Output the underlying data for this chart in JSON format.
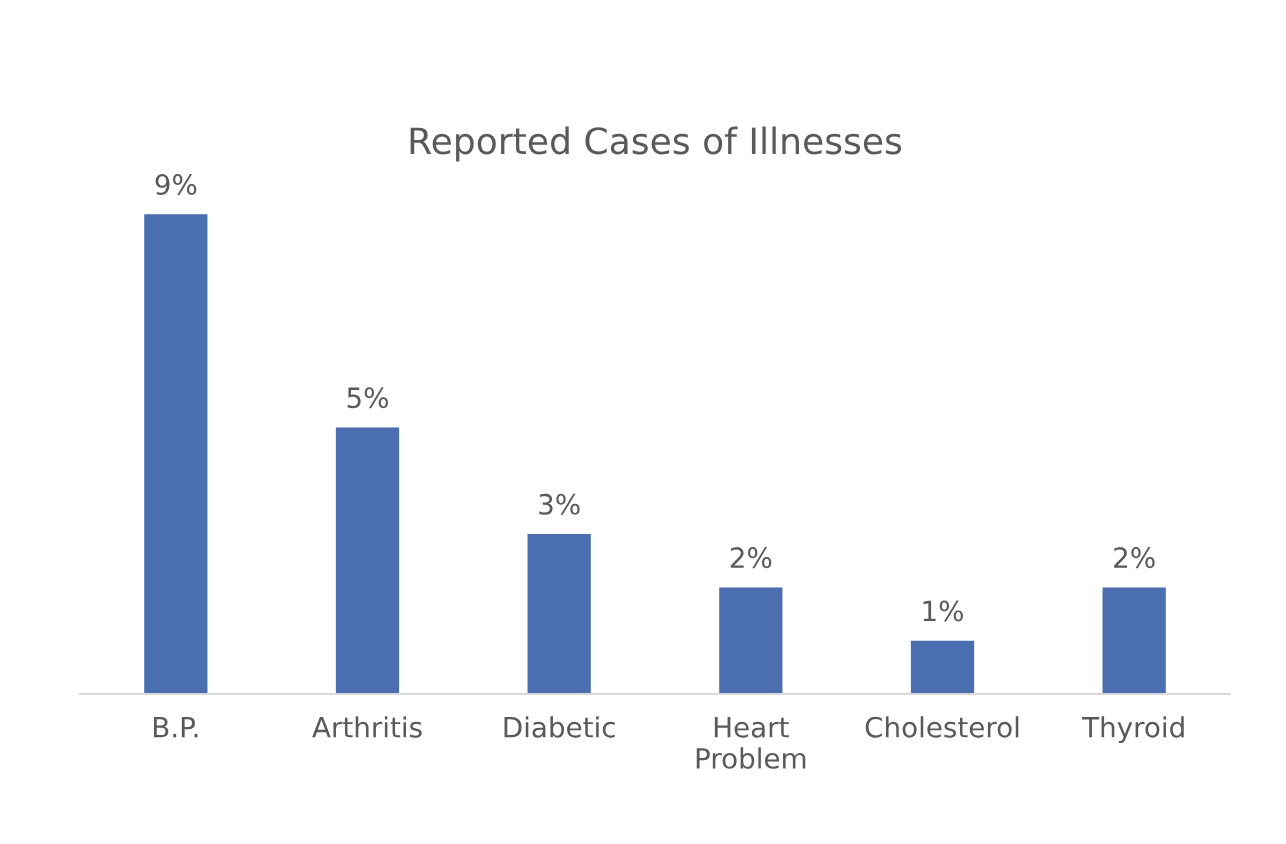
{
  "chart_data": {
    "type": "bar",
    "title": "Reported Cases of Illnesses",
    "categories": [
      "B.P.",
      "Arthritis",
      "Diabetic",
      "Heart\nProblem",
      "Cholesterol",
      "Thyroid"
    ],
    "values": [
      9,
      5,
      3,
      2,
      1,
      2
    ],
    "value_labels": [
      "9%",
      "5%",
      "3%",
      "2%",
      "1%",
      "2%"
    ],
    "color": "#4a6eb0",
    "grid": false,
    "legend": false
  }
}
